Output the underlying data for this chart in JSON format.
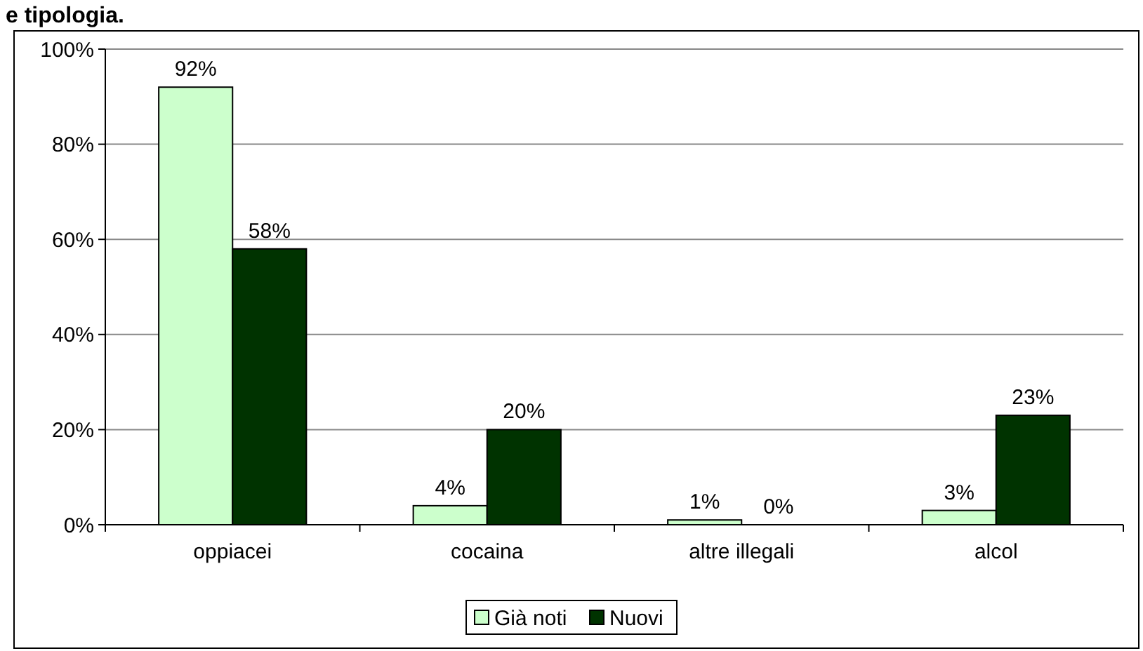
{
  "chart_data": {
    "type": "bar",
    "title": "e tipologia.",
    "categories": [
      "oppiacei",
      "cocaina",
      "altre illegali",
      "alcol"
    ],
    "series": [
      {
        "name": "Già noti",
        "color": "#ccffcc",
        "values": [
          92,
          4,
          1,
          3
        ]
      },
      {
        "name": "Nuovi",
        "color": "#003300",
        "values": [
          58,
          20,
          0,
          23
        ]
      }
    ],
    "ylim": [
      0,
      100
    ],
    "yticks": [
      {
        "value": 0,
        "label": "0%"
      },
      {
        "value": 20,
        "label": "20%"
      },
      {
        "value": 40,
        "label": "40%"
      },
      {
        "value": 60,
        "label": "60%"
      },
      {
        "value": 80,
        "label": "80%"
      },
      {
        "value": 100,
        "label": "100%"
      }
    ],
    "grid": "y",
    "legend": "bottom",
    "value_labels": [
      [
        "92%",
        "4%",
        "1%",
        "3%"
      ],
      [
        "58%",
        "20%",
        "0%",
        "23%"
      ]
    ]
  }
}
